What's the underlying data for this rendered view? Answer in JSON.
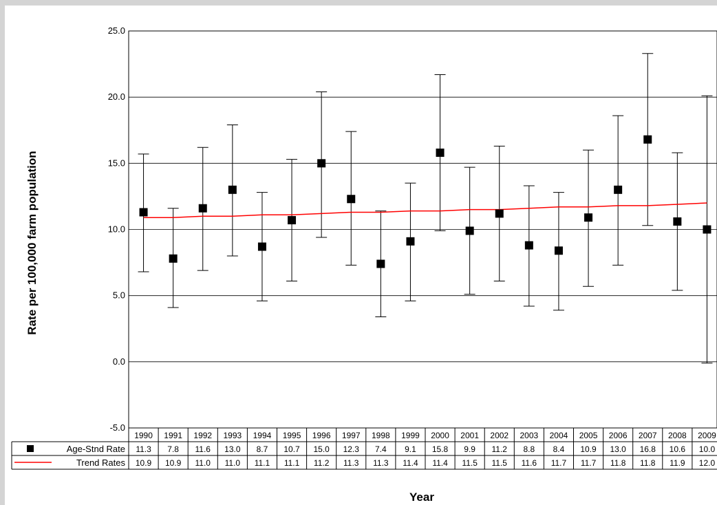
{
  "chart_data": {
    "type": "scatter",
    "title": "",
    "xlabel": "Year",
    "ylabel": "Rate per 100,000 farm population",
    "ylim": [
      -5.0,
      25.0
    ],
    "yticks": [
      "-5.0",
      "0.0",
      "5.0",
      "10.0",
      "15.0",
      "20.0",
      "25.0"
    ],
    "grid": "horizontal",
    "categories": [
      "1990",
      "1991",
      "1992",
      "1993",
      "1994",
      "1995",
      "1996",
      "1997",
      "1998",
      "1999",
      "2000",
      "2001",
      "2002",
      "2003",
      "2004",
      "2005",
      "2006",
      "2007",
      "2008",
      "2009"
    ],
    "series": [
      {
        "name": "Age-Stnd Rate",
        "marker": "square",
        "color": "#000000",
        "values": [
          11.3,
          7.8,
          11.6,
          13.0,
          8.7,
          10.7,
          15.0,
          12.3,
          7.4,
          9.1,
          15.8,
          9.9,
          11.2,
          8.8,
          8.4,
          10.9,
          13.0,
          16.8,
          10.6,
          10.0
        ],
        "labels": [
          "11.3",
          "7.8",
          "11.6",
          "13.0",
          "8.7",
          "10.7",
          "15.0",
          "12.3",
          "7.4",
          "9.1",
          "15.8",
          "9.9",
          "11.2",
          "8.8",
          "8.4",
          "10.9",
          "13.0",
          "16.8",
          "10.6",
          "10.0"
        ],
        "error_low": [
          6.8,
          4.1,
          6.9,
          8.0,
          4.6,
          6.1,
          9.4,
          7.3,
          3.4,
          4.6,
          9.9,
          5.1,
          6.1,
          4.2,
          3.9,
          5.7,
          7.3,
          10.3,
          5.4,
          -0.1
        ],
        "error_high": [
          15.7,
          11.6,
          16.2,
          17.9,
          12.8,
          15.3,
          20.4,
          17.4,
          11.4,
          13.5,
          21.7,
          14.7,
          16.3,
          13.3,
          12.8,
          16.0,
          18.6,
          23.3,
          15.8,
          20.1
        ]
      },
      {
        "name": "Trend Rates",
        "marker": "line",
        "color": "#ff0000",
        "values": [
          10.9,
          10.9,
          11.0,
          11.0,
          11.1,
          11.1,
          11.2,
          11.3,
          11.3,
          11.4,
          11.4,
          11.5,
          11.5,
          11.6,
          11.7,
          11.7,
          11.8,
          11.8,
          11.9,
          12.0
        ],
        "labels": [
          "10.9",
          "10.9",
          "11.0",
          "11.0",
          "11.1",
          "11.1",
          "11.2",
          "11.3",
          "11.3",
          "11.4",
          "11.4",
          "11.5",
          "11.5",
          "11.6",
          "11.7",
          "11.7",
          "11.8",
          "11.8",
          "11.9",
          "12.0"
        ]
      }
    ]
  }
}
